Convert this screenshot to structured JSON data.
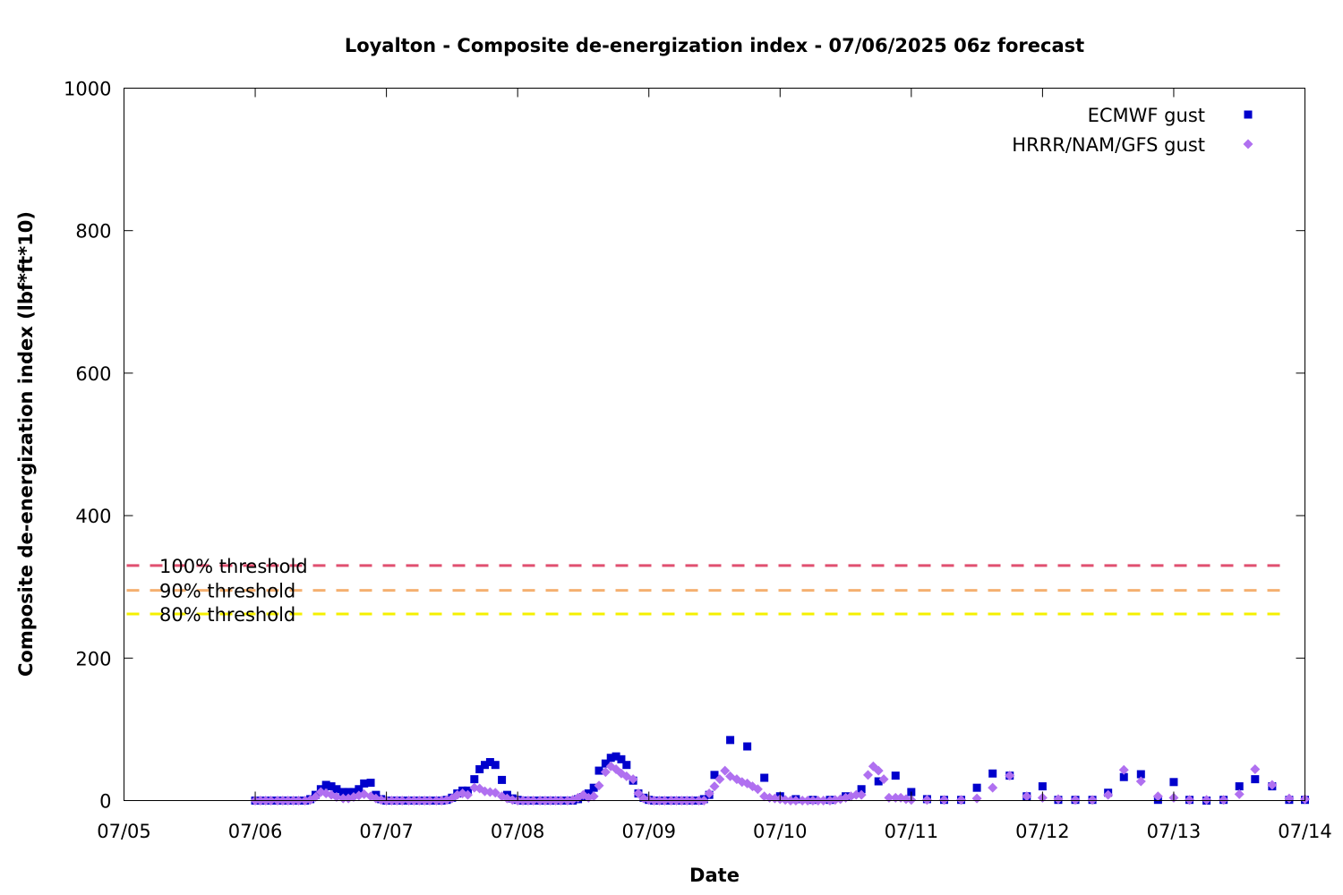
{
  "chart_data": {
    "type": "scatter",
    "title": "Loyalton - Composite de-energization index - 07/06/2025 06z forecast",
    "xlabel": "Date",
    "ylabel": "Composite de-energization index (lbf*ft*10)",
    "x_unit": "days since 07/05 00z",
    "xlim": [
      "07/05",
      "07/14"
    ],
    "ylim": [
      0,
      1000
    ],
    "x_ticks": [
      "07/05",
      "07/06",
      "07/07",
      "07/08",
      "07/09",
      "07/10",
      "07/11",
      "07/12",
      "07/13",
      "07/14"
    ],
    "y_ticks": [
      "0",
      "200",
      "400",
      "600",
      "800",
      "1000"
    ],
    "grid": false,
    "legend_position": "top-right",
    "thresholds": [
      {
        "label": "100% threshold",
        "value": 330,
        "color": "#e05070"
      },
      {
        "label": "90% threshold",
        "value": 295,
        "color": "#f5b070"
      },
      {
        "label": "80% threshold",
        "value": 262,
        "color": "#f5f000"
      }
    ],
    "series": [
      {
        "name": "ECMWF gust",
        "marker": "square",
        "color": "#0000cc",
        "points": [
          [
            1.0,
            0
          ],
          [
            1.04,
            0
          ],
          [
            1.08,
            0
          ],
          [
            1.12,
            0
          ],
          [
            1.17,
            0
          ],
          [
            1.21,
            0
          ],
          [
            1.25,
            0
          ],
          [
            1.29,
            0
          ],
          [
            1.33,
            0
          ],
          [
            1.38,
            0
          ],
          [
            1.42,
            2
          ],
          [
            1.46,
            8
          ],
          [
            1.5,
            16
          ],
          [
            1.54,
            22
          ],
          [
            1.58,
            20
          ],
          [
            1.62,
            16
          ],
          [
            1.67,
            12
          ],
          [
            1.71,
            12
          ],
          [
            1.75,
            12
          ],
          [
            1.79,
            16
          ],
          [
            1.83,
            24
          ],
          [
            1.88,
            25
          ],
          [
            1.92,
            8
          ],
          [
            1.96,
            2
          ],
          [
            2.0,
            0
          ],
          [
            2.04,
            0
          ],
          [
            2.08,
            0
          ],
          [
            2.12,
            0
          ],
          [
            2.17,
            0
          ],
          [
            2.21,
            0
          ],
          [
            2.25,
            0
          ],
          [
            2.29,
            0
          ],
          [
            2.33,
            0
          ],
          [
            2.38,
            0
          ],
          [
            2.42,
            0
          ],
          [
            2.46,
            1
          ],
          [
            2.5,
            4
          ],
          [
            2.54,
            10
          ],
          [
            2.58,
            14
          ],
          [
            2.62,
            14
          ],
          [
            2.67,
            30
          ],
          [
            2.71,
            44
          ],
          [
            2.75,
            50
          ],
          [
            2.79,
            54
          ],
          [
            2.83,
            50
          ],
          [
            2.88,
            29
          ],
          [
            2.92,
            8
          ],
          [
            2.96,
            3
          ],
          [
            3.0,
            1
          ],
          [
            3.04,
            0
          ],
          [
            3.08,
            0
          ],
          [
            3.12,
            0
          ],
          [
            3.17,
            0
          ],
          [
            3.21,
            0
          ],
          [
            3.25,
            0
          ],
          [
            3.29,
            0
          ],
          [
            3.33,
            0
          ],
          [
            3.38,
            0
          ],
          [
            3.42,
            0
          ],
          [
            3.46,
            2
          ],
          [
            3.5,
            5
          ],
          [
            3.54,
            10
          ],
          [
            3.58,
            18
          ],
          [
            3.62,
            42
          ],
          [
            3.67,
            52
          ],
          [
            3.71,
            60
          ],
          [
            3.75,
            62
          ],
          [
            3.79,
            58
          ],
          [
            3.83,
            50
          ],
          [
            3.88,
            28
          ],
          [
            3.92,
            10
          ],
          [
            3.96,
            4
          ],
          [
            4.0,
            1
          ],
          [
            4.04,
            0
          ],
          [
            4.08,
            0
          ],
          [
            4.12,
            0
          ],
          [
            4.17,
            0
          ],
          [
            4.21,
            0
          ],
          [
            4.25,
            0
          ],
          [
            4.29,
            0
          ],
          [
            4.33,
            0
          ],
          [
            4.38,
            0
          ],
          [
            4.42,
            2
          ],
          [
            4.46,
            8
          ],
          [
            4.5,
            36
          ],
          [
            4.62,
            85
          ],
          [
            4.75,
            76
          ],
          [
            4.88,
            32
          ],
          [
            5.0,
            6
          ],
          [
            5.12,
            2
          ],
          [
            5.25,
            1
          ],
          [
            5.38,
            1
          ],
          [
            5.5,
            6
          ],
          [
            5.62,
            16
          ],
          [
            5.75,
            27
          ],
          [
            5.88,
            35
          ],
          [
            6.0,
            12
          ],
          [
            6.12,
            2
          ],
          [
            6.25,
            1
          ],
          [
            6.38,
            1
          ],
          [
            6.5,
            18
          ],
          [
            6.62,
            38
          ],
          [
            6.75,
            35
          ],
          [
            6.88,
            6
          ],
          [
            7.0,
            20
          ],
          [
            7.12,
            1
          ],
          [
            7.25,
            1
          ],
          [
            7.38,
            1
          ],
          [
            7.5,
            11
          ],
          [
            7.62,
            33
          ],
          [
            7.75,
            37
          ],
          [
            7.88,
            1
          ],
          [
            8.0,
            26
          ],
          [
            8.12,
            1
          ],
          [
            8.25,
            0
          ],
          [
            8.38,
            1
          ],
          [
            8.5,
            20
          ],
          [
            8.62,
            30
          ],
          [
            8.75,
            20
          ],
          [
            8.88,
            1
          ],
          [
            9.0,
            1
          ]
        ]
      },
      {
        "name": "HRRR/NAM/GFS gust",
        "marker": "diamond",
        "color": "#b070f0",
        "points": [
          [
            1.0,
            0
          ],
          [
            1.04,
            0
          ],
          [
            1.08,
            0
          ],
          [
            1.12,
            0
          ],
          [
            1.17,
            0
          ],
          [
            1.21,
            0
          ],
          [
            1.25,
            0
          ],
          [
            1.29,
            0
          ],
          [
            1.33,
            0
          ],
          [
            1.38,
            0
          ],
          [
            1.42,
            1
          ],
          [
            1.46,
            5
          ],
          [
            1.5,
            12
          ],
          [
            1.54,
            10
          ],
          [
            1.58,
            8
          ],
          [
            1.62,
            5
          ],
          [
            1.67,
            3
          ],
          [
            1.71,
            3
          ],
          [
            1.75,
            5
          ],
          [
            1.79,
            7
          ],
          [
            1.83,
            9
          ],
          [
            1.88,
            6
          ],
          [
            1.92,
            3
          ],
          [
            1.96,
            1
          ],
          [
            2.0,
            0
          ],
          [
            2.04,
            0
          ],
          [
            2.08,
            0
          ],
          [
            2.12,
            0
          ],
          [
            2.17,
            0
          ],
          [
            2.21,
            0
          ],
          [
            2.25,
            0
          ],
          [
            2.29,
            0
          ],
          [
            2.33,
            0
          ],
          [
            2.38,
            0
          ],
          [
            2.42,
            0
          ],
          [
            2.46,
            1
          ],
          [
            2.5,
            3
          ],
          [
            2.54,
            8
          ],
          [
            2.58,
            10
          ],
          [
            2.62,
            8
          ],
          [
            2.67,
            18
          ],
          [
            2.71,
            17
          ],
          [
            2.75,
            13
          ],
          [
            2.79,
            12
          ],
          [
            2.83,
            11
          ],
          [
            2.88,
            6
          ],
          [
            2.92,
            3
          ],
          [
            2.96,
            1
          ],
          [
            3.0,
            0
          ],
          [
            3.04,
            0
          ],
          [
            3.08,
            0
          ],
          [
            3.12,
            0
          ],
          [
            3.17,
            0
          ],
          [
            3.21,
            0
          ],
          [
            3.25,
            0
          ],
          [
            3.29,
            0
          ],
          [
            3.33,
            0
          ],
          [
            3.38,
            0
          ],
          [
            3.42,
            1
          ],
          [
            3.46,
            4
          ],
          [
            3.5,
            8
          ],
          [
            3.54,
            4
          ],
          [
            3.58,
            6
          ],
          [
            3.62,
            21
          ],
          [
            3.67,
            40
          ],
          [
            3.71,
            48
          ],
          [
            3.75,
            44
          ],
          [
            3.79,
            38
          ],
          [
            3.83,
            34
          ],
          [
            3.88,
            30
          ],
          [
            3.92,
            10
          ],
          [
            3.96,
            3
          ],
          [
            4.0,
            1
          ],
          [
            4.04,
            0
          ],
          [
            4.08,
            0
          ],
          [
            4.12,
            0
          ],
          [
            4.17,
            0
          ],
          [
            4.21,
            0
          ],
          [
            4.25,
            0
          ],
          [
            4.29,
            0
          ],
          [
            4.33,
            0
          ],
          [
            4.38,
            0
          ],
          [
            4.42,
            0
          ],
          [
            4.46,
            10
          ],
          [
            4.5,
            20
          ],
          [
            4.54,
            30
          ],
          [
            4.58,
            42
          ],
          [
            4.62,
            34
          ],
          [
            4.67,
            30
          ],
          [
            4.71,
            26
          ],
          [
            4.75,
            24
          ],
          [
            4.79,
            20
          ],
          [
            4.83,
            16
          ],
          [
            4.88,
            6
          ],
          [
            4.92,
            4
          ],
          [
            4.96,
            3
          ],
          [
            5.0,
            2
          ],
          [
            5.04,
            1
          ],
          [
            5.08,
            0
          ],
          [
            5.12,
            0
          ],
          [
            5.17,
            0
          ],
          [
            5.21,
            0
          ],
          [
            5.25,
            0
          ],
          [
            5.29,
            0
          ],
          [
            5.33,
            0
          ],
          [
            5.38,
            0
          ],
          [
            5.42,
            1
          ],
          [
            5.46,
            2
          ],
          [
            5.5,
            4
          ],
          [
            5.54,
            6
          ],
          [
            5.58,
            8
          ],
          [
            5.62,
            8
          ],
          [
            5.67,
            36
          ],
          [
            5.71,
            48
          ],
          [
            5.75,
            42
          ],
          [
            5.79,
            30
          ],
          [
            5.83,
            4
          ],
          [
            5.88,
            4
          ],
          [
            5.92,
            4
          ],
          [
            5.96,
            2
          ],
          [
            6.0,
            1
          ],
          [
            6.12,
            1
          ],
          [
            6.25,
            1
          ],
          [
            6.38,
            1
          ],
          [
            6.5,
            3
          ],
          [
            6.62,
            18
          ],
          [
            6.75,
            35
          ],
          [
            6.88,
            6
          ],
          [
            7.0,
            4
          ],
          [
            7.12,
            2
          ],
          [
            7.25,
            1
          ],
          [
            7.38,
            1
          ],
          [
            7.5,
            8
          ],
          [
            7.62,
            43
          ],
          [
            7.75,
            27
          ],
          [
            7.88,
            6
          ],
          [
            8.0,
            4
          ],
          [
            8.12,
            1
          ],
          [
            8.25,
            1
          ],
          [
            8.38,
            1
          ],
          [
            8.5,
            9
          ],
          [
            8.62,
            44
          ],
          [
            8.75,
            22
          ],
          [
            8.88,
            3
          ],
          [
            9.0,
            2
          ]
        ]
      }
    ]
  }
}
